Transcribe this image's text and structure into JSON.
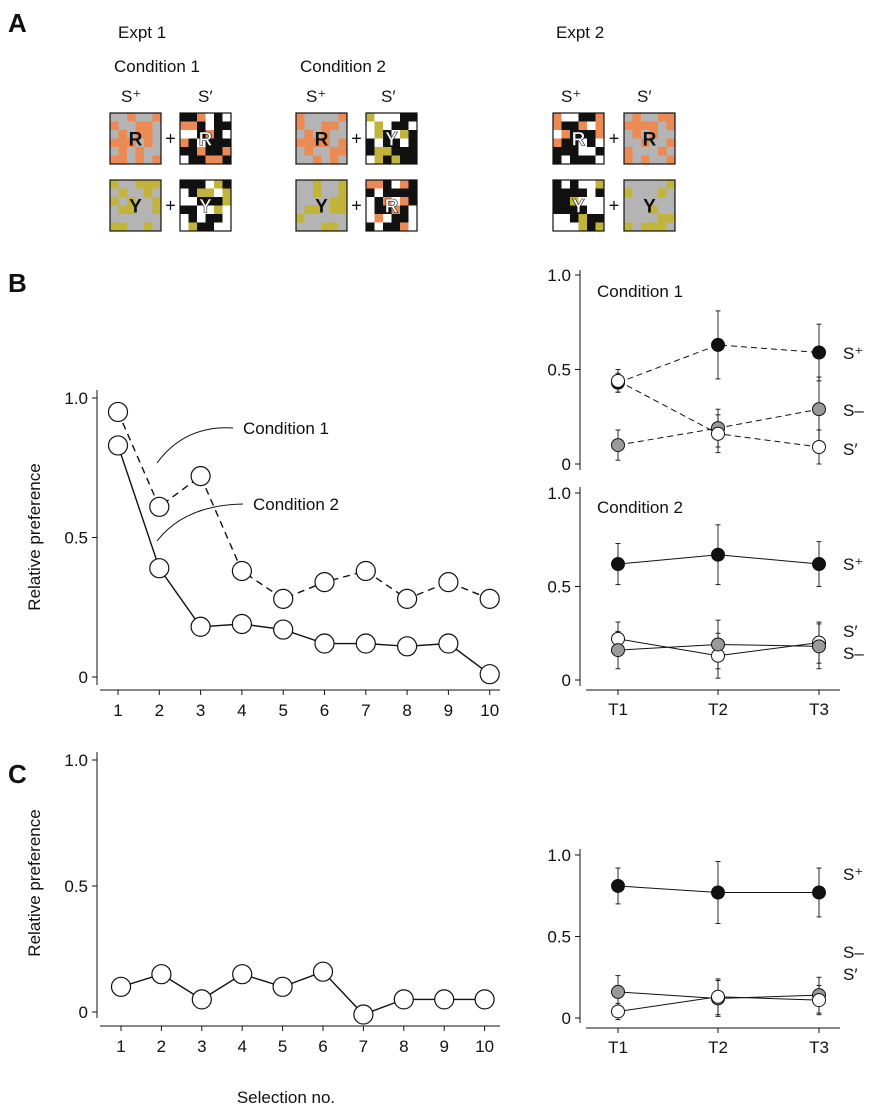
{
  "panels": {
    "a": "A",
    "b": "B",
    "c": "C"
  },
  "panel_a": {
    "expt1": "Expt 1",
    "expt2": "Expt 2",
    "condition1": "Condition 1",
    "condition2": "Condition 2",
    "s_plus": "S⁺",
    "s_prime": "S′",
    "plus": "+",
    "colors": {
      "gray": "#b4b4b4",
      "orange": "#ec8a55",
      "yellow": "#c2b33a",
      "black": "#111111",
      "white": "#ffffff"
    },
    "stimuli": [
      {
        "group": "c1",
        "row": 0,
        "left": {
          "pattern": "colored",
          "accent": "orange",
          "letter": "R"
        },
        "right": {
          "pattern": "bw",
          "accent": "orange",
          "letter": "R"
        }
      },
      {
        "group": "c1",
        "row": 1,
        "left": {
          "pattern": "colored",
          "accent": "yellow",
          "letter": "Y"
        },
        "right": {
          "pattern": "bw",
          "accent": "yellow",
          "letter": "Y"
        }
      },
      {
        "group": "c2",
        "row": 0,
        "left": {
          "pattern": "colored",
          "accent": "orange",
          "letter": "R"
        },
        "right": {
          "pattern": "bw",
          "accent": "yellow",
          "letter": "Y"
        }
      },
      {
        "group": "c2",
        "row": 1,
        "left": {
          "pattern": "colored",
          "accent": "yellow",
          "letter": "Y"
        },
        "right": {
          "pattern": "bw",
          "accent": "orange",
          "letter": "R"
        }
      },
      {
        "group": "e2",
        "row": 0,
        "left": {
          "pattern": "bw",
          "accent": "orange",
          "letter": "R"
        },
        "right": {
          "pattern": "colored",
          "accent": "orange",
          "letter": "R"
        }
      },
      {
        "group": "e2",
        "row": 1,
        "left": {
          "pattern": "bw",
          "accent": "yellow",
          "letter": "Y"
        },
        "right": {
          "pattern": "colored",
          "accent": "yellow",
          "letter": "Y"
        }
      }
    ]
  },
  "chart_data": [
    {
      "id": "B-left",
      "type": "line",
      "ylabel": "Relative preference",
      "xlabel": "",
      "x": [
        1,
        2,
        3,
        4,
        5,
        6,
        7,
        8,
        9,
        10
      ],
      "ylim": [
        0,
        1.0
      ],
      "yticks": [
        "0",
        "0.5",
        "1.0"
      ],
      "series": [
        {
          "name": "Condition 1",
          "style": "dashed",
          "marker": "open",
          "values": [
            0.95,
            0.61,
            0.72,
            0.38,
            0.28,
            0.34,
            0.38,
            0.28,
            0.34,
            0.28
          ]
        },
        {
          "name": "Condition 2",
          "style": "solid",
          "marker": "open",
          "values": [
            0.83,
            0.39,
            0.18,
            0.19,
            0.17,
            0.12,
            0.12,
            0.11,
            0.12,
            0.01
          ]
        }
      ]
    },
    {
      "id": "B-right-top",
      "type": "line",
      "title": "Condition 1",
      "categories": [
        "T1",
        "T2",
        "T3"
      ],
      "ylim": [
        0,
        1.0
      ],
      "yticks": [
        "0",
        "0.5",
        "1.0"
      ],
      "series": [
        {
          "name": "S⁺",
          "fill": "#111111",
          "style": "dashed",
          "values": [
            0.43,
            0.63,
            0.59
          ],
          "err": [
            0.05,
            0.18,
            0.15
          ]
        },
        {
          "name": "S–",
          "fill": "#9a9a9a",
          "style": "dashed",
          "values": [
            0.1,
            0.19,
            0.29
          ],
          "err": [
            0.08,
            0.1,
            0.17
          ]
        },
        {
          "name": "S′",
          "fill": "#ffffff",
          "style": "dashed",
          "values": [
            0.44,
            0.16,
            0.09
          ],
          "err": [
            0.06,
            0.1,
            0.09
          ]
        }
      ]
    },
    {
      "id": "B-right-bottom",
      "type": "line",
      "title": "Condition 2",
      "categories": [
        "T1",
        "T2",
        "T3"
      ],
      "ylim": [
        0,
        1.0
      ],
      "yticks": [
        "0",
        "0.5",
        "1.0"
      ],
      "series": [
        {
          "name": "S⁺",
          "fill": "#111111",
          "style": "solid",
          "values": [
            0.62,
            0.67,
            0.62
          ],
          "err": [
            0.11,
            0.16,
            0.12
          ]
        },
        {
          "name": "S′",
          "fill": "#ffffff",
          "style": "solid",
          "values": [
            0.22,
            0.13,
            0.2
          ],
          "err": [
            0.09,
            0.12,
            0.11
          ]
        },
        {
          "name": "S–",
          "fill": "#9a9a9a",
          "style": "solid",
          "values": [
            0.16,
            0.19,
            0.18
          ],
          "err": [
            0.1,
            0.13,
            0.12
          ]
        }
      ]
    },
    {
      "id": "C-left",
      "type": "line",
      "ylabel": "Relative preference",
      "xlabel": "Selection no.",
      "x": [
        1,
        2,
        3,
        4,
        5,
        6,
        7,
        8,
        9,
        10
      ],
      "ylim": [
        0,
        1.0
      ],
      "yticks": [
        "0",
        "0.5",
        "1.0"
      ],
      "series": [
        {
          "name": "",
          "style": "solid",
          "marker": "open",
          "values": [
            0.1,
            0.15,
            0.05,
            0.15,
            0.1,
            0.16,
            -0.01,
            0.05,
            0.05,
            0.05
          ]
        }
      ]
    },
    {
      "id": "C-right",
      "type": "line",
      "categories": [
        "T1",
        "T2",
        "T3"
      ],
      "ylim": [
        0,
        1.0
      ],
      "yticks": [
        "0",
        "0.5",
        "1.0"
      ],
      "series": [
        {
          "name": "S⁺",
          "fill": "#111111",
          "style": "solid",
          "values": [
            0.81,
            0.77,
            0.77
          ],
          "err": [
            0.11,
            0.19,
            0.15
          ]
        },
        {
          "name": "S–",
          "fill": "#9a9a9a",
          "style": "solid",
          "values": [
            0.16,
            0.12,
            0.14
          ],
          "err": [
            0.1,
            0.11,
            0.11
          ]
        },
        {
          "name": "S′",
          "fill": "#ffffff",
          "style": "solid",
          "values": [
            0.04,
            0.13,
            0.11
          ],
          "err": [
            0.05,
            0.11,
            0.09
          ]
        }
      ]
    }
  ]
}
